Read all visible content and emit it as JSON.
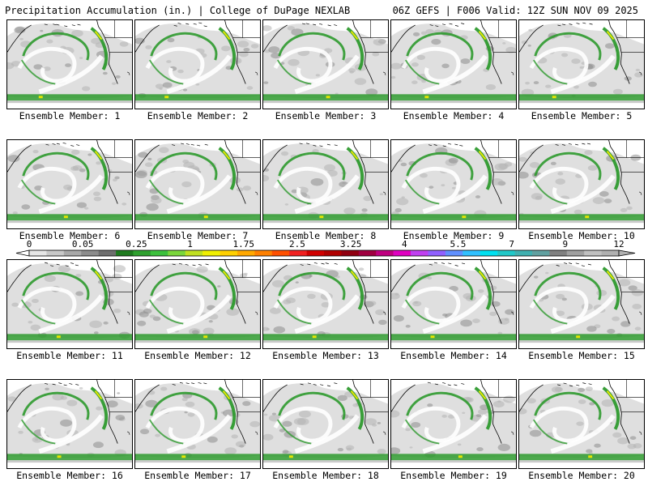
{
  "header": {
    "left_title": "Precipitation Accumulation (in.) | College of DuPage NEXLAB",
    "right_title": "06Z GEFS | F006 Valid: 12Z SUN NOV 09 2025"
  },
  "members": [
    {
      "label": "Ensemble Member: 1"
    },
    {
      "label": "Ensemble Member: 2"
    },
    {
      "label": "Ensemble Member: 3"
    },
    {
      "label": "Ensemble Member: 4"
    },
    {
      "label": "Ensemble Member: 5"
    },
    {
      "label": "Ensemble Member: 6"
    },
    {
      "label": "Ensemble Member: 7"
    },
    {
      "label": "Ensemble Member: 8"
    },
    {
      "label": "Ensemble Member: 9"
    },
    {
      "label": "Ensemble Member: 10"
    },
    {
      "label": "Ensemble Member: 11"
    },
    {
      "label": "Ensemble Member: 12"
    },
    {
      "label": "Ensemble Member: 13"
    },
    {
      "label": "Ensemble Member: 14"
    },
    {
      "label": "Ensemble Member: 15"
    },
    {
      "label": "Ensemble Member: 16"
    },
    {
      "label": "Ensemble Member: 17"
    },
    {
      "label": "Ensemble Member: 18"
    },
    {
      "label": "Ensemble Member: 19"
    },
    {
      "label": "Ensemble Member: 20"
    }
  ],
  "colorbar": {
    "tick_labels": [
      "0",
      "0.05",
      "0.25",
      "1",
      "1.75",
      "2.5",
      "3.25",
      "4",
      "5.5",
      "7",
      "9",
      "12"
    ],
    "colors": [
      "#e6e6e6",
      "#c8c8c8",
      "#a8a8a8",
      "#8c8c8c",
      "#6e6e6e",
      "#1e7a1e",
      "#2ea02e",
      "#3cc03c",
      "#7ad63a",
      "#c0e020",
      "#f0f000",
      "#ffd000",
      "#ffa800",
      "#ff8000",
      "#ff5000",
      "#f02020",
      "#d00000",
      "#b00000",
      "#900010",
      "#a00040",
      "#c00080",
      "#e000c0",
      "#c040f0",
      "#9060ff",
      "#6090ff",
      "#30c0ff",
      "#00e0f0",
      "#20c8c8",
      "#40b0b0",
      "#60a0a0",
      "#808080",
      "#a0a0a0",
      "#c0c0c0",
      "#b0b0b0"
    ]
  },
  "map_colors": {
    "light_gray": "#d9d9d9",
    "mid_gray": "#b3b3b3",
    "dark_gray": "#8c8c8c",
    "green": "#2e9a2e",
    "yellow": "#e6e600"
  }
}
